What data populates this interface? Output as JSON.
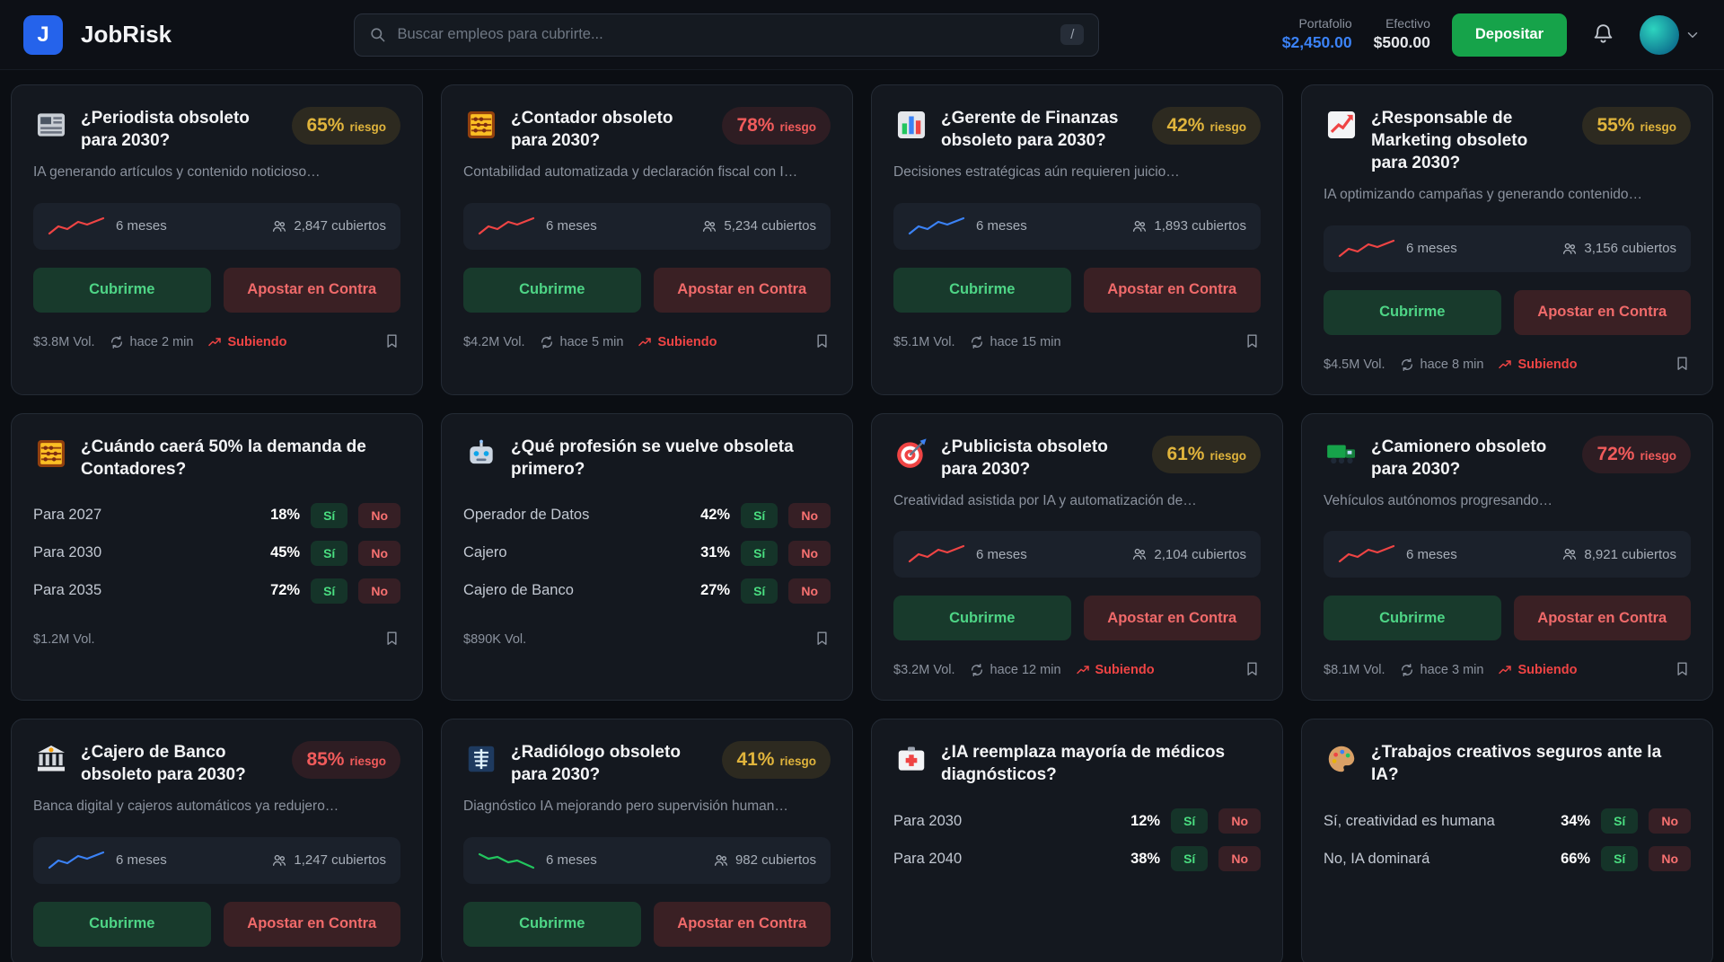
{
  "colors": {
    "accent_blue": "#3b82f6",
    "green": "#22c55e",
    "red": "#ef4444",
    "yellow": "#e0b43c",
    "deposit_green": "#16a34a"
  },
  "header": {
    "logo_letter": "J",
    "app_name": "JobRisk",
    "search": {
      "placeholder": "Buscar empleos para cubrirte...",
      "shortcut": "/"
    },
    "portfolio": {
      "label": "Portafolio",
      "value": "$2,450.00"
    },
    "cash": {
      "label": "Efectivo",
      "value": "$500.00"
    },
    "deposit_label": "Depositar"
  },
  "labels": {
    "cover": "Cubrirme",
    "against": "Apostar en Contra",
    "yes": "Sí",
    "no": "No",
    "risk": "riesgo"
  },
  "cards": [
    {
      "type": "binary",
      "icon": "newspaper-icon",
      "title": "¿Periodista obsoleto para 2030?",
      "risk_pct": "65%",
      "risk_level": "medium",
      "description": "IA generando artículos y contenido noticioso…",
      "duration": "6 meses",
      "covered": "2,847 cubiertos",
      "chart": {
        "color": "#ef4444",
        "trend": "up"
      },
      "volume": "$3.8M Vol.",
      "updated": "hace 2 min",
      "trend": "Subiendo"
    },
    {
      "type": "binary",
      "icon": "abacus-icon",
      "title": "¿Contador obsoleto para 2030?",
      "risk_pct": "78%",
      "risk_level": "high",
      "description": "Contabilidad automatizada y declaración fiscal con I…",
      "duration": "6 meses",
      "covered": "5,234 cubiertos",
      "chart": {
        "color": "#ef4444",
        "trend": "up"
      },
      "volume": "$4.2M Vol.",
      "updated": "hace 5 min",
      "trend": "Subiendo"
    },
    {
      "type": "binary",
      "icon": "bar-chart-icon",
      "title": "¿Gerente de Finanzas obsoleto para 2030?",
      "risk_pct": "42%",
      "risk_level": "medium",
      "description": "Decisiones estratégicas aún requieren juicio…",
      "duration": "6 meses",
      "covered": "1,893 cubiertos",
      "chart": {
        "color": "#3b82f6",
        "trend": "up"
      },
      "volume": "$5.1M Vol.",
      "updated": "hace 15 min"
    },
    {
      "type": "binary",
      "icon": "chart-up-icon",
      "title": "¿Responsable de Marketing obsoleto para 2030?",
      "risk_pct": "55%",
      "risk_level": "medium",
      "description": "IA optimizando campañas y generando contenido…",
      "duration": "6 meses",
      "covered": "3,156 cubiertos",
      "chart": {
        "color": "#ef4444",
        "trend": "up"
      },
      "volume": "$4.5M Vol.",
      "updated": "hace 8 min",
      "trend": "Subiendo"
    },
    {
      "type": "multi",
      "icon": "abacus-icon",
      "title": "¿Cuándo caerá 50% la demanda de Contadores?",
      "outcomes": [
        {
          "label": "Para 2027",
          "pct": "18%"
        },
        {
          "label": "Para 2030",
          "pct": "45%"
        },
        {
          "label": "Para 2035",
          "pct": "72%"
        }
      ],
      "volume": "$1.2M Vol."
    },
    {
      "type": "multi",
      "icon": "robot-icon",
      "title": "¿Qué profesión se vuelve obsoleta primero?",
      "outcomes": [
        {
          "label": "Operador de Datos",
          "pct": "42%"
        },
        {
          "label": "Cajero",
          "pct": "31%"
        },
        {
          "label": "Cajero de Banco",
          "pct": "27%"
        }
      ],
      "volume": "$890K Vol."
    },
    {
      "type": "binary",
      "icon": "target-icon",
      "title": "¿Publicista obsoleto para 2030?",
      "risk_pct": "61%",
      "risk_level": "medium",
      "description": "Creatividad asistida por IA y automatización de…",
      "duration": "6 meses",
      "covered": "2,104 cubiertos",
      "chart": {
        "color": "#ef4444",
        "trend": "up"
      },
      "volume": "$3.2M Vol.",
      "updated": "hace 12 min",
      "trend": "Subiendo"
    },
    {
      "type": "binary",
      "icon": "truck-icon",
      "title": "¿Camionero obsoleto para 2030?",
      "risk_pct": "72%",
      "risk_level": "high",
      "description": "Vehículos autónomos progresando…",
      "duration": "6 meses",
      "covered": "8,921 cubiertos",
      "chart": {
        "color": "#ef4444",
        "trend": "up"
      },
      "volume": "$8.1M Vol.",
      "updated": "hace 3 min",
      "trend": "Subiendo"
    },
    {
      "type": "binary",
      "icon": "bank-icon",
      "title": "¿Cajero de Banco obsoleto para 2030?",
      "risk_pct": "85%",
      "risk_level": "high",
      "description": "Banca digital y cajeros automáticos ya redujero…",
      "duration": "6 meses",
      "covered": "1,247 cubiertos",
      "chart": {
        "color": "#3b82f6",
        "trend": "up"
      }
    },
    {
      "type": "binary",
      "icon": "xray-icon",
      "title": "¿Radiólogo obsoleto para 2030?",
      "risk_pct": "41%",
      "risk_level": "medium",
      "description": "Diagnóstico IA mejorando pero supervisión human…",
      "duration": "6 meses",
      "covered": "982 cubiertos",
      "chart": {
        "color": "#22c55e",
        "trend": "down"
      }
    },
    {
      "type": "multi",
      "icon": "medical-icon",
      "title": "¿IA reemplaza mayoría de médicos diagnósticos?",
      "outcomes": [
        {
          "label": "Para 2030",
          "pct": "12%"
        },
        {
          "label": "Para 2040",
          "pct": "38%"
        }
      ]
    },
    {
      "type": "multi",
      "icon": "palette-icon",
      "title": "¿Trabajos creativos seguros ante la IA?",
      "outcomes": [
        {
          "label": "Sí, creatividad es humana",
          "pct": "34%"
        },
        {
          "label": "No, IA dominará",
          "pct": "66%"
        }
      ]
    }
  ]
}
